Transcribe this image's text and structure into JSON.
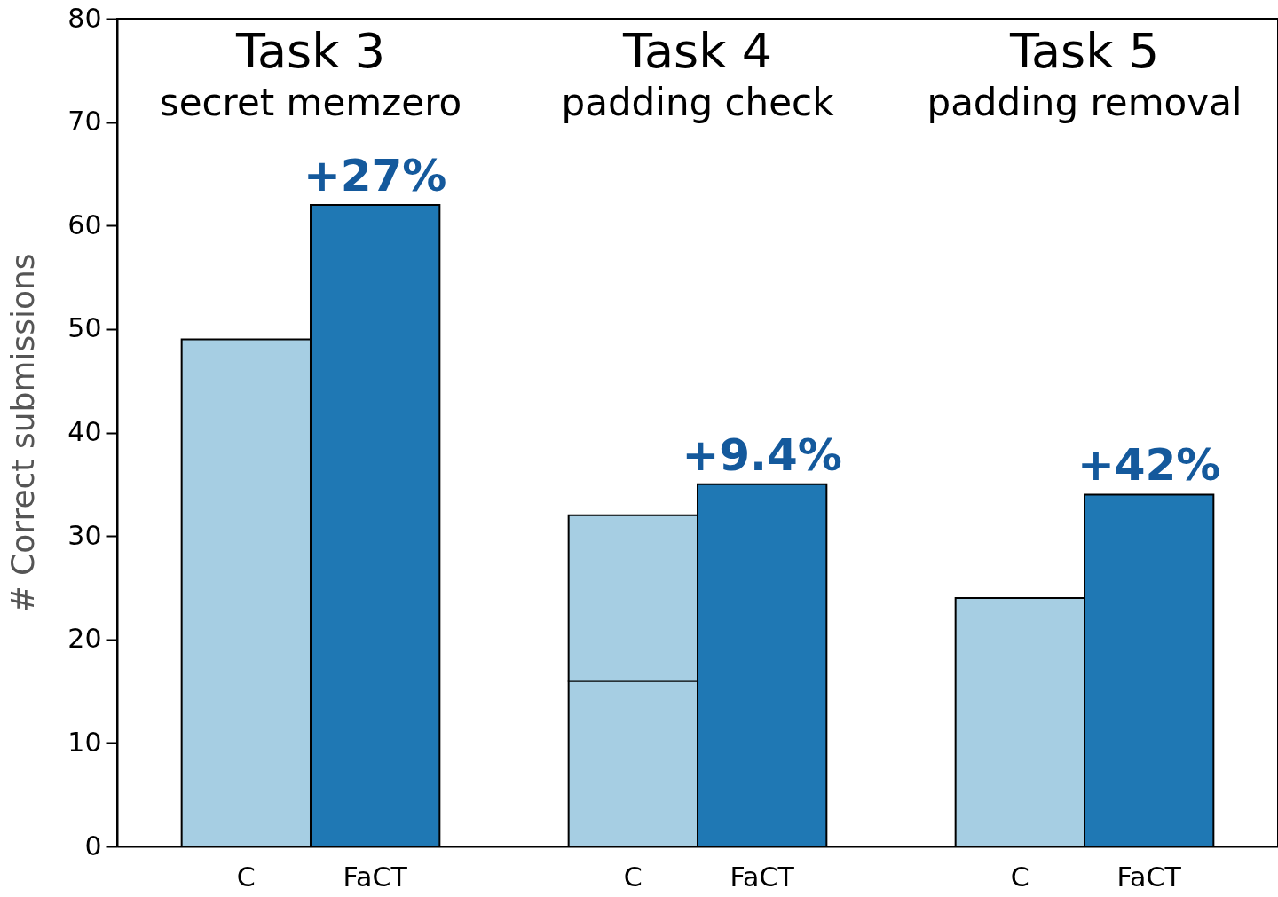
{
  "chart_data": {
    "type": "bar",
    "stacked": true,
    "ylabel": "# Correct  submissions",
    "categories": [
      "C",
      "FaCT",
      null,
      "C",
      "FaCT",
      null,
      "C",
      "FaCT"
    ],
    "series": [
      {
        "color": "#a6cee3",
        "values": [
          49,
          null,
          null,
          16,
          null,
          null,
          24,
          null
        ]
      },
      {
        "color": "#a6cee3",
        "values": [
          null,
          null,
          null,
          16,
          null,
          null,
          null,
          null
        ]
      },
      {
        "color": "#1f78b4",
        "values": [
          null,
          62,
          null,
          null,
          35,
          null,
          null,
          34
        ]
      }
    ],
    "ylim": [
      0,
      80
    ],
    "yticks": [
      0,
      10,
      20,
      30,
      40,
      50,
      60,
      70,
      80
    ],
    "grid": false,
    "legend": false,
    "annotations": [
      "Task 3",
      "secret memzero",
      "Task 4",
      "padding check",
      "Task 5",
      "padding removal",
      "+27%",
      "+9.4%",
      "+42%"
    ]
  }
}
